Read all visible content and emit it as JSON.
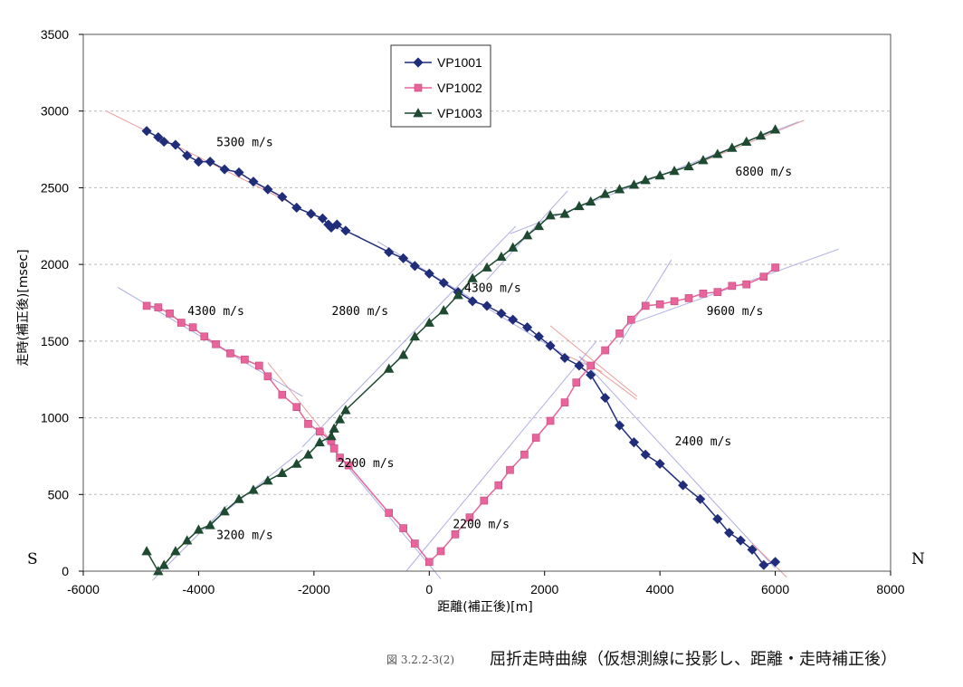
{
  "chart_data": {
    "type": "line",
    "title": "",
    "xlabel": "距離(補正後)[m]",
    "ylabel": "走時(補正後)[msec]",
    "xlim": [
      -6000,
      8000
    ],
    "ylim": [
      0,
      3500
    ],
    "xticks": [
      -6000,
      -4000,
      -2000,
      0,
      2000,
      4000,
      6000,
      8000
    ],
    "yticks": [
      0,
      500,
      1000,
      1500,
      2000,
      2500,
      3000,
      3500
    ],
    "xtick_labels": [
      "-6000",
      "-4000",
      "-2000",
      "0",
      "2000",
      "4000",
      "6000",
      "8000"
    ],
    "ytick_labels": [
      "0",
      "500",
      "1000",
      "1500",
      "2000",
      "2500",
      "3000",
      "3500"
    ],
    "grid": "horizontal dashed",
    "legend_position": "top-center",
    "series": [
      {
        "name": "VP1001",
        "color": "#1f2d7a",
        "marker": "diamond",
        "points": [
          [
            -4900,
            2870
          ],
          [
            -4700,
            2830
          ],
          [
            -4600,
            2800
          ],
          [
            -4400,
            2780
          ],
          [
            -4200,
            2710
          ],
          [
            -4000,
            2670
          ],
          [
            -3800,
            2670
          ],
          [
            -3550,
            2620
          ],
          [
            -3300,
            2600
          ],
          [
            -3050,
            2540
          ],
          [
            -2800,
            2490
          ],
          [
            -2550,
            2440
          ],
          [
            -2300,
            2370
          ],
          [
            -2050,
            2330
          ],
          [
            -1850,
            2300
          ],
          [
            -1750,
            2260
          ],
          [
            -1700,
            2240
          ],
          [
            -1600,
            2260
          ],
          [
            -1450,
            2220
          ],
          [
            -700,
            2080
          ],
          [
            -450,
            2040
          ],
          [
            -250,
            1990
          ],
          [
            0,
            1940
          ],
          [
            250,
            1880
          ],
          [
            500,
            1820
          ],
          [
            750,
            1760
          ],
          [
            1000,
            1730
          ],
          [
            1250,
            1680
          ],
          [
            1450,
            1640
          ],
          [
            1700,
            1590
          ],
          [
            1900,
            1530
          ],
          [
            2100,
            1470
          ],
          [
            2350,
            1390
          ],
          [
            2600,
            1340
          ],
          [
            2800,
            1280
          ],
          [
            3050,
            1130
          ],
          [
            3300,
            950
          ],
          [
            3550,
            840
          ],
          [
            3750,
            760
          ],
          [
            4000,
            700
          ],
          [
            4400,
            560
          ],
          [
            4700,
            470
          ],
          [
            5000,
            340
          ],
          [
            5200,
            250
          ],
          [
            5400,
            200
          ],
          [
            5600,
            140
          ],
          [
            5800,
            40
          ],
          [
            6000,
            60
          ]
        ]
      },
      {
        "name": "VP1002",
        "color": "#e8649a",
        "marker": "square",
        "points": [
          [
            -4900,
            1730
          ],
          [
            -4700,
            1720
          ],
          [
            -4500,
            1680
          ],
          [
            -4300,
            1620
          ],
          [
            -4100,
            1590
          ],
          [
            -3900,
            1530
          ],
          [
            -3700,
            1480
          ],
          [
            -3450,
            1420
          ],
          [
            -3200,
            1380
          ],
          [
            -2950,
            1340
          ],
          [
            -2800,
            1270
          ],
          [
            -2550,
            1150
          ],
          [
            -2300,
            1070
          ],
          [
            -2100,
            960
          ],
          [
            -1900,
            910
          ],
          [
            -1700,
            850
          ],
          [
            -1650,
            800
          ],
          [
            -1550,
            740
          ],
          [
            -1400,
            690
          ],
          [
            -700,
            380
          ],
          [
            -450,
            280
          ],
          [
            -250,
            180
          ],
          [
            0,
            60
          ],
          [
            200,
            130
          ],
          [
            450,
            240
          ],
          [
            700,
            350
          ],
          [
            950,
            460
          ],
          [
            1200,
            560
          ],
          [
            1400,
            660
          ],
          [
            1650,
            760
          ],
          [
            1850,
            870
          ],
          [
            2100,
            980
          ],
          [
            2350,
            1100
          ],
          [
            2550,
            1230
          ],
          [
            2800,
            1340
          ],
          [
            3050,
            1440
          ],
          [
            3300,
            1550
          ],
          [
            3500,
            1640
          ],
          [
            3750,
            1730
          ],
          [
            4000,
            1740
          ],
          [
            4250,
            1760
          ],
          [
            4500,
            1780
          ],
          [
            4750,
            1810
          ],
          [
            5000,
            1820
          ],
          [
            5250,
            1860
          ],
          [
            5500,
            1870
          ],
          [
            5800,
            1920
          ],
          [
            6000,
            1980
          ]
        ]
      },
      {
        "name": "VP1003",
        "color": "#1d4a30",
        "marker": "triangle",
        "points": [
          [
            -4900,
            130
          ],
          [
            -4700,
            0
          ],
          [
            -4600,
            40
          ],
          [
            -4400,
            130
          ],
          [
            -4200,
            200
          ],
          [
            -4000,
            270
          ],
          [
            -3800,
            300
          ],
          [
            -3550,
            390
          ],
          [
            -3300,
            470
          ],
          [
            -3050,
            530
          ],
          [
            -2800,
            590
          ],
          [
            -2550,
            640
          ],
          [
            -2300,
            700
          ],
          [
            -2100,
            760
          ],
          [
            -1900,
            840
          ],
          [
            -1700,
            880
          ],
          [
            -1650,
            930
          ],
          [
            -1550,
            990
          ],
          [
            -1450,
            1050
          ],
          [
            -700,
            1320
          ],
          [
            -450,
            1410
          ],
          [
            -250,
            1530
          ],
          [
            0,
            1620
          ],
          [
            250,
            1700
          ],
          [
            500,
            1800
          ],
          [
            750,
            1910
          ],
          [
            1000,
            1980
          ],
          [
            1250,
            2050
          ],
          [
            1450,
            2110
          ],
          [
            1700,
            2190
          ],
          [
            1900,
            2250
          ],
          [
            2100,
            2320
          ],
          [
            2350,
            2330
          ],
          [
            2600,
            2380
          ],
          [
            2800,
            2410
          ],
          [
            3050,
            2460
          ],
          [
            3300,
            2490
          ],
          [
            3550,
            2520
          ],
          [
            3750,
            2550
          ],
          [
            4000,
            2580
          ],
          [
            4250,
            2610
          ],
          [
            4500,
            2640
          ],
          [
            4750,
            2680
          ],
          [
            5000,
            2720
          ],
          [
            5250,
            2760
          ],
          [
            5500,
            2800
          ],
          [
            5750,
            2840
          ],
          [
            6000,
            2880
          ]
        ]
      }
    ],
    "fit_lines": [
      {
        "color": "#e88a8a",
        "from": [
          -5600,
          3000
        ],
        "to": [
          -2400,
          2400
        ]
      },
      {
        "color": "#9aa0e0",
        "from": [
          -1700,
          2250
        ],
        "to": [
          -1200,
          2180
        ]
      },
      {
        "color": "#a0a0e0",
        "from": [
          -900,
          2150
        ],
        "to": [
          2300,
          1420
        ]
      },
      {
        "color": "#e09090",
        "from": [
          2300,
          1420
        ],
        "to": [
          3000,
          1300
        ]
      },
      {
        "color": "#e88a8a",
        "from": [
          2600,
          1400
        ],
        "to": [
          3600,
          1120
        ]
      },
      {
        "color": "#a0a0e0",
        "from": [
          2600,
          1400
        ],
        "to": [
          6000,
          20
        ]
      },
      {
        "color": "#e88a8a",
        "from": [
          5600,
          180
        ],
        "to": [
          6200,
          -40
        ]
      },
      {
        "color": "#9aa0e0",
        "from": [
          -5400,
          1850
        ],
        "to": [
          -2200,
          1140
        ]
      },
      {
        "color": "#e09090",
        "from": [
          -2800,
          1360
        ],
        "to": [
          -1600,
          800
        ]
      },
      {
        "color": "#a0a0e0",
        "from": [
          -1900,
          900
        ],
        "to": [
          200,
          -50
        ]
      },
      {
        "color": "#a0a0e0",
        "from": [
          -400,
          0
        ],
        "to": [
          2900,
          1500
        ]
      },
      {
        "color": "#a0a0e0",
        "from": [
          3300,
          1480
        ],
        "to": [
          4200,
          2030
        ]
      },
      {
        "color": "#e88a8a",
        "from": [
          2100,
          1600
        ],
        "to": [
          3600,
          1140
        ]
      },
      {
        "color": "#a0a0e0",
        "from": [
          3400,
          1600
        ],
        "to": [
          7100,
          2100
        ]
      },
      {
        "color": "#a0a0e0",
        "from": [
          -4800,
          -60
        ],
        "to": [
          -3500,
          430
        ]
      },
      {
        "color": "#a0a0e0",
        "from": [
          -3800,
          310
        ],
        "to": [
          -2200,
          790
        ]
      },
      {
        "color": "#a0a0e0",
        "from": [
          -2200,
          810
        ],
        "to": [
          1500,
          2250
        ]
      },
      {
        "color": "#a0a0e0",
        "from": [
          1000,
          1900
        ],
        "to": [
          2400,
          2480
        ]
      },
      {
        "color": "#a0a0e0",
        "from": [
          1400,
          2200
        ],
        "to": [
          6400,
          2930
        ]
      },
      {
        "color": "#e09090",
        "from": [
          4800,
          2680
        ],
        "to": [
          6500,
          2940
        ]
      }
    ],
    "velocity_annotations": [
      {
        "text": "5300 m/s",
        "x": -3200,
        "y": 2770
      },
      {
        "text": "4300 m/s",
        "x": 1100,
        "y": 1820
      },
      {
        "text": "2400 m/s",
        "x": 4750,
        "y": 820
      },
      {
        "text": "4300 m/s",
        "x": -3700,
        "y": 1670
      },
      {
        "text": "2200 m/s",
        "x": -1100,
        "y": 680
      },
      {
        "text": "2200 m/s",
        "x": 900,
        "y": 280
      },
      {
        "text": "9600 m/s",
        "x": 5300,
        "y": 1670
      },
      {
        "text": "2800 m/s",
        "x": -1200,
        "y": 1670
      },
      {
        "text": "3200 m/s",
        "x": -3200,
        "y": 210
      },
      {
        "text": "6800 m/s",
        "x": 5800,
        "y": 2580
      }
    ]
  },
  "side_labels": {
    "left": "S",
    "right": "N"
  },
  "caption": {
    "number": "図 3.2.2-3(2)",
    "text": "屈折走時曲線（仮想測線に投影し、距離・走時補正後）"
  }
}
